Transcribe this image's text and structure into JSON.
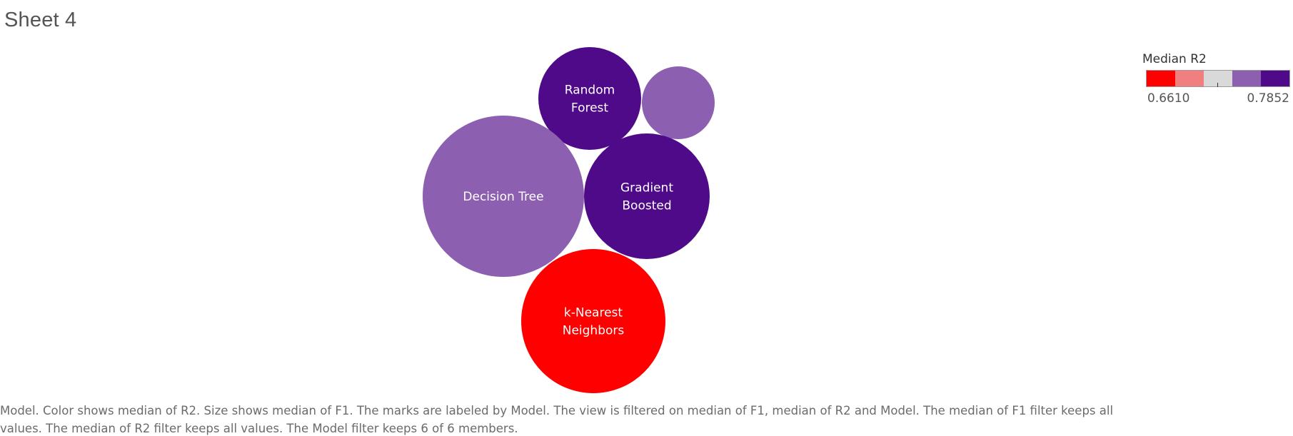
{
  "sheet": {
    "title": "Sheet 4"
  },
  "chart_data": {
    "type": "bubble",
    "color_measure": "Median R2",
    "size_measure": "Median F1",
    "color_range": [
      0.661,
      0.7852
    ],
    "palette": [
      "#ff0000",
      "#f08080",
      "#d9d9d9",
      "#8c5fb1",
      "#4f0a8a"
    ],
    "bubbles": [
      {
        "name": "Random Forest",
        "lines": [
          "Random",
          "Forest"
        ],
        "color": "#4f0a8a"
      },
      {
        "name": "",
        "lines": [],
        "color": "#8c5fb1"
      },
      {
        "name": "Decision Tree",
        "lines": [
          "Decision Tree"
        ],
        "color": "#8c5fb1"
      },
      {
        "name": "Gradient Boosted",
        "lines": [
          "Gradient",
          "Boosted"
        ],
        "color": "#4f0a8a"
      },
      {
        "name": "k-Nearest Neighbors",
        "lines": [
          "k-Nearest",
          "Neighbors"
        ],
        "color": "#ff0000"
      }
    ]
  },
  "legend": {
    "title": "Median R2",
    "min_label": "0.6610",
    "max_label": "0.7852",
    "steps": [
      "#ff0000",
      "#f08080",
      "#d9d9d9",
      "#8c5fb1",
      "#4f0a8a"
    ]
  },
  "caption": {
    "text": "Model.  Color shows median of R2.  Size shows median of F1.  The marks are labeled by Model. The view is filtered on median of F1, median of R2 and Model. The median of F1 filter keeps all values. The median of R2 filter keeps all values. The Model filter keeps 6 of 6 members."
  }
}
